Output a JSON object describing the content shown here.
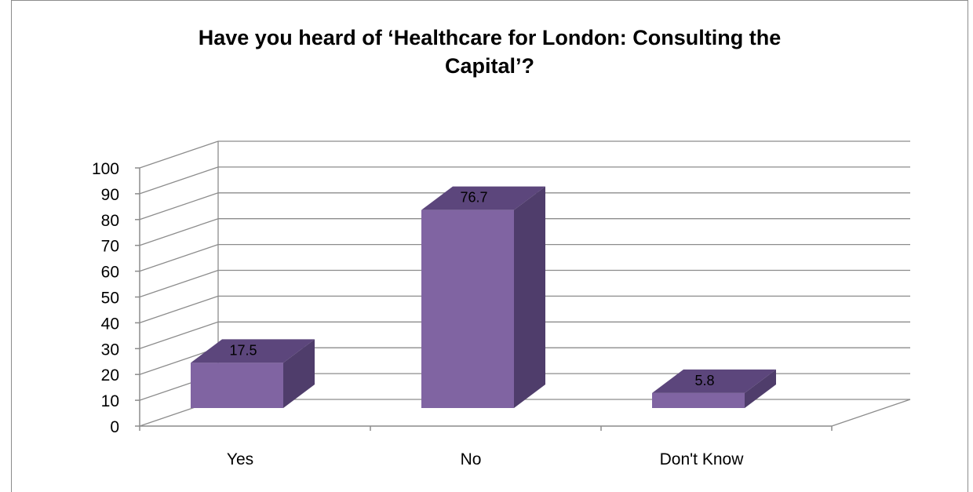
{
  "chart_data": {
    "type": "bar",
    "title_lines": [
      "Have you heard of ‘Healthcare for London: Consulting the",
      "Capital’?"
    ],
    "categories": [
      "Yes",
      "No",
      "Don't Know"
    ],
    "values": [
      17.5,
      76.7,
      5.8
    ],
    "data_labels": [
      "17.5",
      "76.7",
      "5.8"
    ],
    "ylim": [
      0,
      100
    ],
    "yticks": [
      "0",
      "10",
      "20",
      "30",
      "40",
      "50",
      "60",
      "70",
      "80",
      "90",
      "100"
    ],
    "grid": true,
    "three_d": true,
    "legend": "none",
    "colors": {
      "front": "#8064a2",
      "top": "#5c467c",
      "side": "#4f3d6b",
      "grid": "#8c8c8c"
    }
  }
}
